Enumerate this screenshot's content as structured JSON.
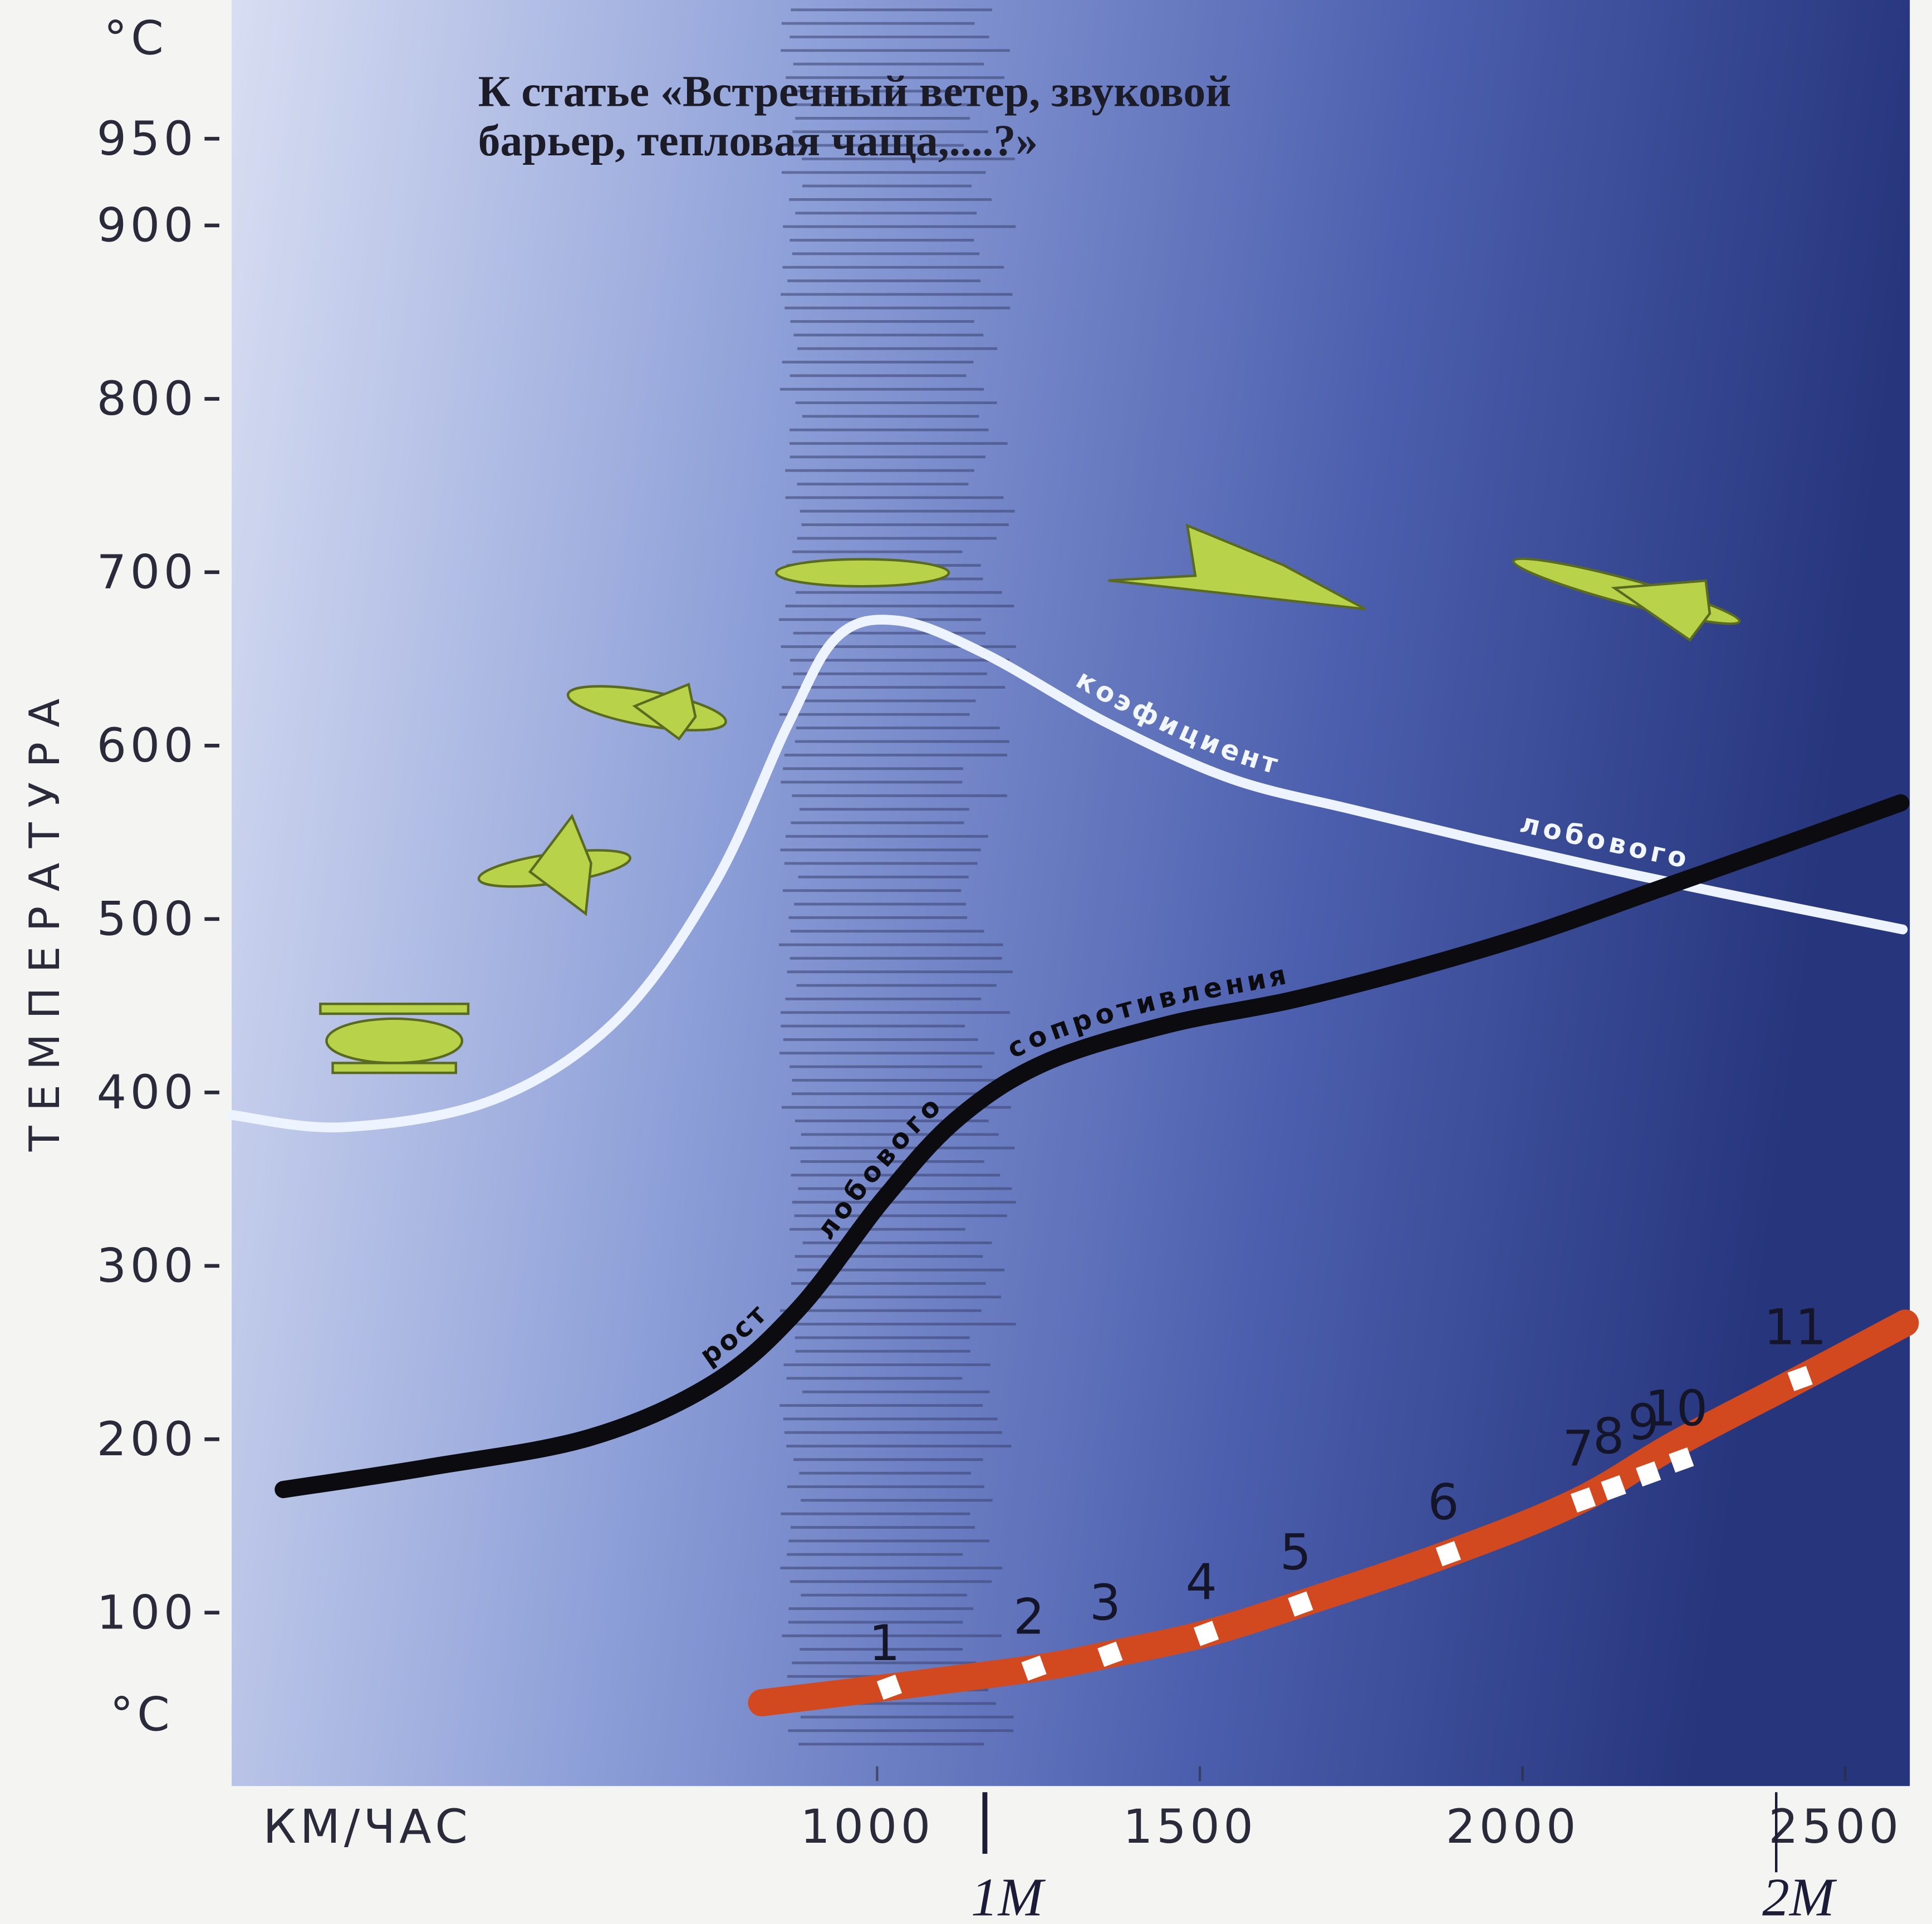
{
  "chart_data": {
    "type": "line",
    "title": [
      "К статье «Встречный ветер, звуковой",
      "барьер, тепловая чаща,....?»"
    ],
    "x_label": "КМ/ЧАС",
    "y_label": "ТЕМПЕРАТУРА",
    "y_unit": "°C",
    "xlim": [
      0,
      2600
    ],
    "ylim": [
      0,
      1030
    ],
    "xticks": [
      1000,
      1500,
      2000,
      2500
    ],
    "yticks": [
      100,
      200,
      300,
      400,
      500,
      600,
      700,
      800,
      900,
      950
    ],
    "mach_ticks": [
      {
        "value": 1167,
        "label": "1M"
      },
      {
        "value": 2393,
        "label": "2M"
      }
    ],
    "series": [
      {
        "labels": [
          "коэфициент",
          "лобового"
        ],
        "color": "#eef4ff",
        "x": [
          0,
          175,
          407,
          597,
          749,
          863,
          939,
          1034,
          1167,
          1357,
          1548,
          1738,
          1928,
          2118,
          2308,
          2589
        ],
        "values": [
          387,
          380,
          396,
          442,
          521,
          613,
          663,
          672,
          653,
          613,
          581,
          563,
          546,
          530,
          515,
          494
        ]
      },
      {
        "labels": [
          "рост",
          "лобового",
          "сопротивления"
        ],
        "color": "#0c0c10",
        "x": [
          80,
          308,
          555,
          745,
          878,
          1011,
          1125,
          1259,
          1449,
          1639,
          1829,
          2019,
          2209,
          2399,
          2586
        ],
        "values": [
          171,
          184,
          201,
          232,
          275,
          339,
          385,
          417,
          439,
          453,
          471,
          492,
          517,
          542,
          567
        ]
      },
      {
        "color": "#d2491f",
        "x": [
          821,
          1019,
          1247,
          1361,
          1510,
          1656,
          1885,
          2084,
          2236,
          2426,
          2593
        ],
        "values": [
          48,
          57,
          68,
          76,
          88,
          105,
          134,
          164,
          197,
          234,
          267
        ]
      }
    ],
    "points": {
      "labels": [
        "1",
        "2",
        "3",
        "4",
        "5",
        "6",
        "7",
        "8",
        "9",
        "10",
        "11"
      ],
      "x": [
        1019,
        1243,
        1361,
        1510,
        1656,
        1885,
        2094,
        2141,
        2195,
        2246,
        2430
      ],
      "values": [
        57,
        68,
        76,
        88,
        105,
        134,
        165,
        172,
        180,
        188,
        235
      ]
    }
  }
}
